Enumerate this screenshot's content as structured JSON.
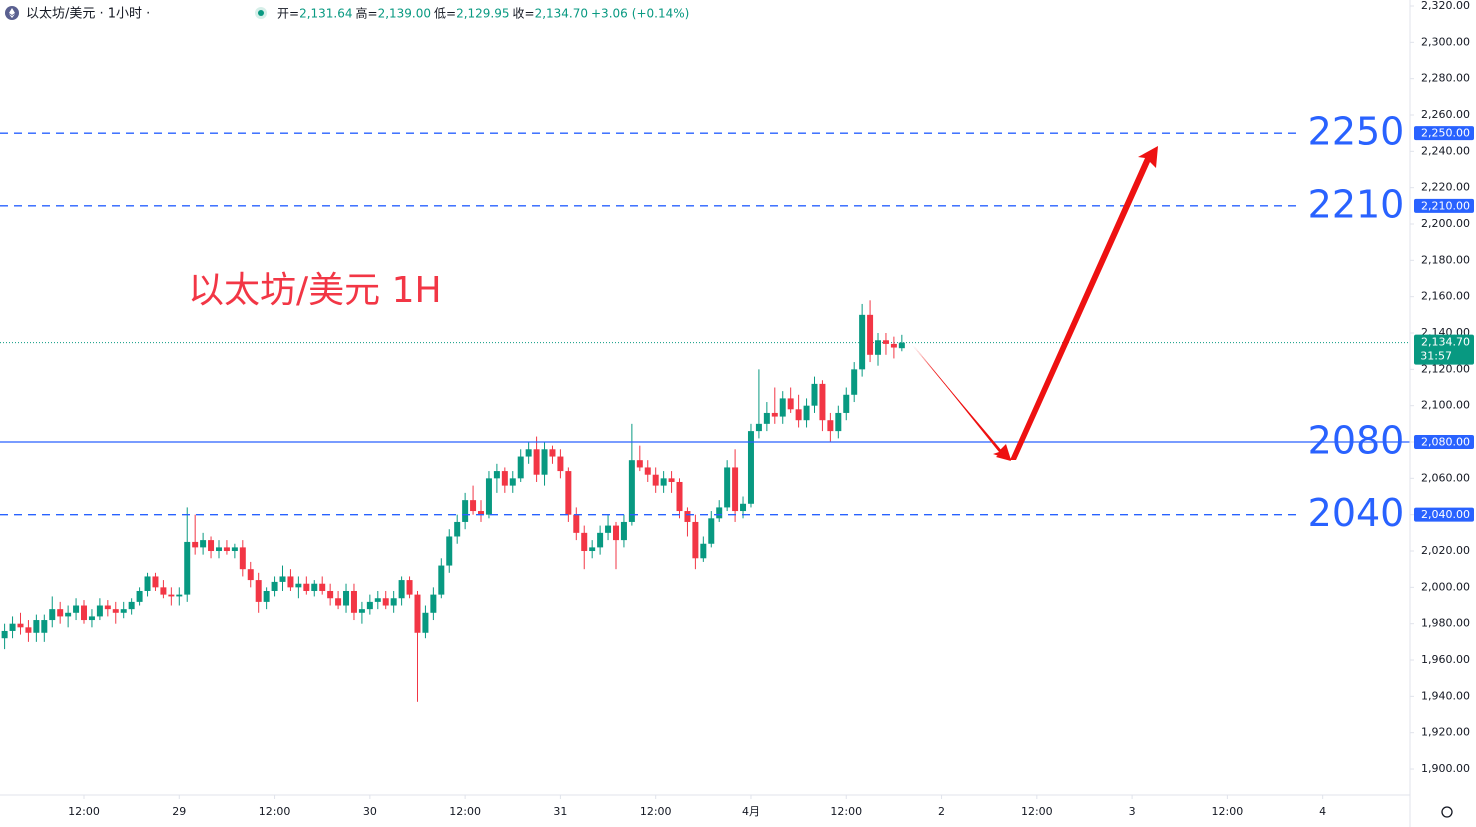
{
  "chart_data": {
    "type": "candlestick",
    "title": "以太坊/美元 · 1小时 ·",
    "stats": [
      {
        "label": "开=",
        "value": {
          "value": 2131.64,
          "label": "2,131.64"
        }
      },
      {
        "label": "高=",
        "value": {
          "value": 2139.0,
          "label": "2,139.00"
        }
      },
      {
        "label": "低=",
        "value": {
          "value": 2129.95,
          "label": "2,129.95"
        }
      },
      {
        "label": "收=",
        "value": {
          "value": 2134.7,
          "label": "2,134.70"
        }
      }
    ],
    "change": {
      "value": 3.06,
      "label": "+3.06"
    },
    "change_pct": {
      "value": 0.14,
      "label": "(+0.14%)"
    },
    "annotation": "以太坊/美元 1H",
    "up_color": "#089981",
    "down_color": "#f23645",
    "level_color": "#2962ff",
    "levels": [
      {
        "value": 2250,
        "label": "2250",
        "tag": "2,250.00",
        "style": "dashed"
      },
      {
        "value": 2210,
        "label": "2210",
        "tag": "2,210.00",
        "style": "dashed"
      },
      {
        "value": 2080,
        "label": "2080",
        "tag": "2,080.00",
        "style": "solid"
      },
      {
        "value": 2040,
        "label": "2040",
        "tag": "2,040.00",
        "style": "dashed"
      }
    ],
    "last_price": {
      "value": 2134.7,
      "label": "2,134.70"
    },
    "countdown": "31:57",
    "ylim": [
      1885.7,
      2323.3
    ],
    "yticks": [
      {
        "value": 1900,
        "label": "1,900.00"
      },
      {
        "value": 1920,
        "label": "1,920.00"
      },
      {
        "value": 1940,
        "label": "1,940.00"
      },
      {
        "value": 1960,
        "label": "1,960.00"
      },
      {
        "value": 1980,
        "label": "1,980.00"
      },
      {
        "value": 2000,
        "label": "2,000.00"
      },
      {
        "value": 2020,
        "label": "2,020.00"
      },
      {
        "value": 2040,
        "label": "2,040.00"
      },
      {
        "value": 2060,
        "label": "2,060.00"
      },
      {
        "value": 2080,
        "label": "2,080.00"
      },
      {
        "value": 2100,
        "label": "2,100.00"
      },
      {
        "value": 2120,
        "label": "2,120.00"
      },
      {
        "value": 2140,
        "label": "2,140.00"
      },
      {
        "value": 2160,
        "label": "2,160.00"
      },
      {
        "value": 2180,
        "label": "2,180.00"
      },
      {
        "value": 2200,
        "label": "2,200.00"
      },
      {
        "value": 2220,
        "label": "2,220.00"
      },
      {
        "value": 2240,
        "label": "2,240.00"
      },
      {
        "value": 2260,
        "label": "2,260.00"
      },
      {
        "value": 2280,
        "label": "2,280.00"
      },
      {
        "value": 2300,
        "label": "2,300.00"
      },
      {
        "value": 2320,
        "label": "2,320.00"
      }
    ],
    "xlim": [
      1.42,
      179
    ],
    "xticks": [
      {
        "value": 12,
        "label": "12:00"
      },
      {
        "value": 24,
        "label": "29"
      },
      {
        "value": 36,
        "label": "12:00"
      },
      {
        "value": 48,
        "label": "30"
      },
      {
        "value": 60,
        "label": "12:00"
      },
      {
        "value": 72,
        "label": "31"
      },
      {
        "value": 84,
        "label": "12:00"
      },
      {
        "value": 96,
        "label": "4月"
      },
      {
        "value": 108,
        "label": "12:00"
      },
      {
        "value": 120,
        "label": "2"
      },
      {
        "value": 132,
        "label": "12:00"
      },
      {
        "value": 144,
        "label": "3"
      },
      {
        "value": 156,
        "label": "12:00"
      },
      {
        "value": 168,
        "label": "4"
      }
    ],
    "x": [
      2,
      3,
      4,
      5,
      6,
      7,
      8,
      9,
      10,
      11,
      12,
      13,
      14,
      15,
      16,
      17,
      18,
      19,
      20,
      21,
      22,
      23,
      24,
      25,
      26,
      27,
      28,
      29,
      30,
      31,
      32,
      33,
      34,
      35,
      36,
      37,
      38,
      39,
      40,
      41,
      42,
      43,
      44,
      45,
      46,
      47,
      48,
      49,
      50,
      51,
      52,
      53,
      54,
      55,
      56,
      57,
      58,
      59,
      60,
      61,
      62,
      63,
      64,
      65,
      66,
      67,
      68,
      69,
      70,
      71,
      72,
      73,
      74,
      75,
      76,
      77,
      78,
      79,
      80,
      81,
      82,
      83,
      84,
      85,
      86,
      87,
      88,
      89,
      90,
      91,
      92,
      93,
      94,
      95,
      96,
      97,
      98,
      99,
      100,
      101,
      102,
      103,
      104,
      105,
      106,
      107,
      108,
      109,
      110,
      111,
      112,
      113,
      114,
      115
    ],
    "ohlc": [
      [
        1972,
        1980,
        1966,
        1976
      ],
      [
        1976,
        1984,
        1972,
        1980
      ],
      [
        1980,
        1986,
        1974,
        1978
      ],
      [
        1978,
        1982,
        1970,
        1975
      ],
      [
        1975,
        1985,
        1970,
        1982
      ],
      [
        1975,
        1985,
        1970,
        1982
      ],
      [
        1982,
        1995,
        1978,
        1988
      ],
      [
        1988,
        1992,
        1980,
        1984
      ],
      [
        1984,
        1990,
        1978,
        1986
      ],
      [
        1986,
        1994,
        1982,
        1990
      ],
      [
        1990,
        1993,
        1980,
        1982
      ],
      [
        1982,
        1988,
        1978,
        1984
      ],
      [
        1984,
        1994,
        1982,
        1990
      ],
      [
        1990,
        1993,
        1984,
        1988
      ],
      [
        1988,
        1992,
        1980,
        1986
      ],
      [
        1986,
        1992,
        1983,
        1988
      ],
      [
        1988,
        1994,
        1985,
        1992
      ],
      [
        1992,
        2000,
        1990,
        1998
      ],
      [
        1998,
        2008,
        1995,
        2006
      ],
      [
        2006,
        2008,
        1998,
        2000
      ],
      [
        2000,
        2004,
        1994,
        1996
      ],
      [
        1996,
        2000,
        1990,
        1995
      ],
      [
        1995,
        2000,
        1990,
        1996
      ],
      [
        1996,
        2044,
        1992,
        2025
      ],
      [
        2025,
        2040,
        2018,
        2022
      ],
      [
        2022,
        2030,
        2018,
        2026
      ],
      [
        2026,
        2028,
        2016,
        2020
      ],
      [
        2020,
        2026,
        2016,
        2022
      ],
      [
        2022,
        2026,
        2018,
        2020
      ],
      [
        2020,
        2024,
        2016,
        2022
      ],
      [
        2022,
        2026,
        2006,
        2010
      ],
      [
        2010,
        2014,
        2000,
        2004
      ],
      [
        2004,
        2008,
        1986,
        1992
      ],
      [
        1992,
        2000,
        1988,
        1998
      ],
      [
        1998,
        2006,
        1995,
        2003
      ],
      [
        2003,
        2012,
        1998,
        2006
      ],
      [
        2006,
        2010,
        1998,
        2000
      ],
      [
        2000,
        2006,
        1994,
        2002
      ],
      [
        2002,
        2006,
        1996,
        1998
      ],
      [
        1998,
        2004,
        1995,
        2002
      ],
      [
        2002,
        2006,
        1996,
        1998
      ],
      [
        1998,
        2002,
        1990,
        1994
      ],
      [
        1994,
        1998,
        1988,
        1990
      ],
      [
        1990,
        2002,
        1986,
        1998
      ],
      [
        1998,
        2002,
        1982,
        1986
      ],
      [
        1986,
        1992,
        1980,
        1988
      ],
      [
        1988,
        1996,
        1985,
        1992
      ],
      [
        1992,
        1998,
        1988,
        1994
      ],
      [
        1994,
        1998,
        1988,
        1990
      ],
      [
        1990,
        1998,
        1986,
        1994
      ],
      [
        1994,
        2006,
        1990,
        2004
      ],
      [
        2004,
        2006,
        1994,
        1996
      ],
      [
        1996,
        1998,
        1937,
        1975
      ],
      [
        1975,
        1990,
        1972,
        1986
      ],
      [
        1986,
        2000,
        1982,
        1996
      ],
      [
        1996,
        2016,
        1994,
        2012
      ],
      [
        2012,
        2032,
        2008,
        2028
      ],
      [
        2028,
        2040,
        2024,
        2036
      ],
      [
        2036,
        2052,
        2032,
        2048
      ],
      [
        2048,
        2056,
        2040,
        2042
      ],
      [
        2042,
        2048,
        2036,
        2040
      ],
      [
        2040,
        2064,
        2038,
        2060
      ],
      [
        2060,
        2068,
        2052,
        2064
      ],
      [
        2064,
        2066,
        2052,
        2056
      ],
      [
        2056,
        2064,
        2052,
        2060
      ],
      [
        2060,
        2076,
        2058,
        2072
      ],
      [
        2072,
        2080,
        2068,
        2076
      ],
      [
        2076,
        2083,
        2058,
        2062
      ],
      [
        2062,
        2080,
        2056,
        2076
      ],
      [
        2076,
        2078,
        2068,
        2072
      ],
      [
        2072,
        2076,
        2060,
        2064
      ],
      [
        2064,
        2066,
        2036,
        2040
      ],
      [
        2040,
        2044,
        2026,
        2030
      ],
      [
        2030,
        2034,
        2010,
        2020
      ],
      [
        2020,
        2026,
        2016,
        2022
      ],
      [
        2022,
        2034,
        2018,
        2030
      ],
      [
        2030,
        2040,
        2026,
        2034
      ],
      [
        2034,
        2036,
        2010,
        2026
      ],
      [
        2026,
        2040,
        2022,
        2036
      ],
      [
        2036,
        2090,
        2034,
        2070
      ],
      [
        2070,
        2078,
        2064,
        2066
      ],
      [
        2066,
        2070,
        2058,
        2062
      ],
      [
        2062,
        2066,
        2052,
        2056
      ],
      [
        2056,
        2064,
        2052,
        2060
      ],
      [
        2060,
        2064,
        2052,
        2058
      ],
      [
        2058,
        2060,
        2038,
        2042
      ],
      [
        2042,
        2044,
        2028,
        2036
      ],
      [
        2036,
        2040,
        2010,
        2016
      ],
      [
        2016,
        2028,
        2014,
        2024
      ],
      [
        2024,
        2042,
        2022,
        2038
      ],
      [
        2038,
        2048,
        2036,
        2044
      ],
      [
        2044,
        2070,
        2042,
        2066
      ],
      [
        2066,
        2076,
        2036,
        2042
      ],
      [
        2042,
        2050,
        2038,
        2046
      ],
      [
        2046,
        2090,
        2044,
        2086
      ],
      [
        2086,
        2120,
        2082,
        2090
      ],
      [
        2090,
        2102,
        2086,
        2096
      ],
      [
        2096,
        2110,
        2090,
        2094
      ],
      [
        2094,
        2108,
        2090,
        2104
      ],
      [
        2104,
        2110,
        2096,
        2098
      ],
      [
        2098,
        2106,
        2088,
        2092
      ],
      [
        2092,
        2104,
        2088,
        2100
      ],
      [
        2100,
        2116,
        2096,
        2112
      ],
      [
        2112,
        2114,
        2086,
        2092
      ],
      [
        2092,
        2096,
        2080,
        2086
      ],
      [
        2086,
        2100,
        2082,
        2096
      ],
      [
        2096,
        2110,
        2092,
        2106
      ],
      [
        2106,
        2124,
        2102,
        2120
      ],
      [
        2120,
        2156,
        2116,
        2150
      ],
      [
        2150,
        2158,
        2124,
        2128
      ],
      [
        2128,
        2140,
        2122,
        2136
      ],
      [
        2136,
        2140,
        2128,
        2134
      ],
      [
        2134,
        2138,
        2126,
        2132
      ],
      [
        2131.64,
        2139,
        2129.95,
        2134.7
      ]
    ]
  }
}
